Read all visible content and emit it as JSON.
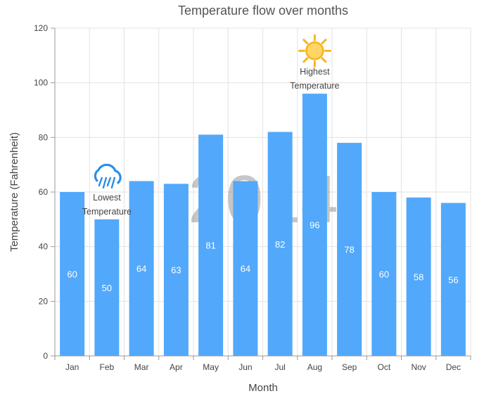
{
  "chart_data": {
    "type": "bar",
    "title": "Temperature flow over months",
    "xlabel": "Month",
    "ylabel": "Temperature (Fahrenheit)",
    "ylim": [
      0,
      120
    ],
    "yticks": [
      0,
      20,
      40,
      60,
      80,
      100,
      120
    ],
    "grid": true,
    "watermark": "2014",
    "categories": [
      "Jan",
      "Feb",
      "Mar",
      "Apr",
      "May",
      "Jun",
      "Jul",
      "Aug",
      "Sep",
      "Oct",
      "Nov",
      "Dec"
    ],
    "series": [
      {
        "values": [
          60,
          50,
          64,
          63,
          81,
          64,
          82,
          96,
          78,
          60,
          58,
          56
        ],
        "color": "#52a8fa"
      }
    ],
    "data_labels": true,
    "annotations": [
      {
        "category": "Feb",
        "icon": "rain-cloud-icon",
        "lines": [
          "Lowest",
          "Temperature"
        ],
        "color": "#2b8ee6"
      },
      {
        "category": "Aug",
        "icon": "sun-icon",
        "lines": [
          "Highest",
          "Temperature"
        ],
        "color": "#f5b71f"
      }
    ]
  }
}
